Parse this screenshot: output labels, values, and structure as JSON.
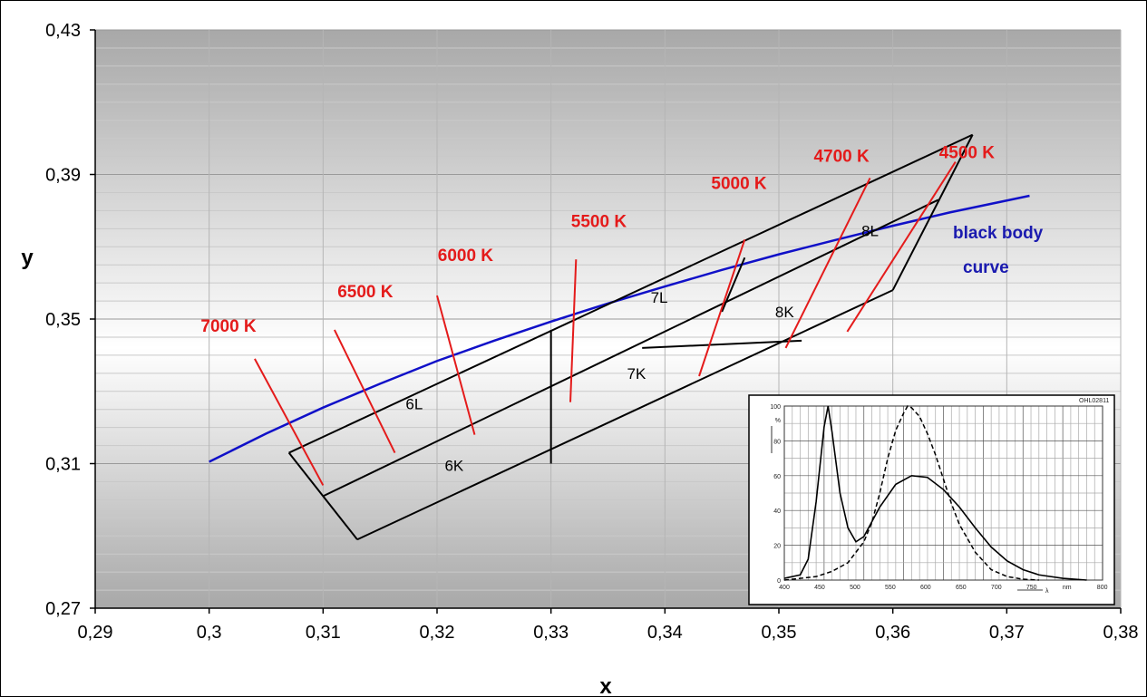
{
  "chart_data": {
    "type": "line",
    "xlabel": "x",
    "ylabel": "y",
    "xlim": [
      0.29,
      0.38
    ],
    "ylim": [
      0.27,
      0.43
    ],
    "x_ticks": [
      "0,29",
      "0,3",
      "0,31",
      "0,32",
      "0,33",
      "0,34",
      "0,35",
      "0,36",
      "0,37",
      "0,38"
    ],
    "y_ticks": [
      "0,27",
      "0,31",
      "0,35",
      "0,39",
      "0,43"
    ],
    "grid": true,
    "black_body_curve": {
      "label_line1": "black body",
      "label_line2": "curve",
      "color": "#1010c8",
      "points": [
        [
          0.3,
          0.3105
        ],
        [
          0.305,
          0.3183
        ],
        [
          0.31,
          0.3255
        ],
        [
          0.315,
          0.3321
        ],
        [
          0.32,
          0.3384
        ],
        [
          0.325,
          0.344
        ],
        [
          0.33,
          0.3493
        ],
        [
          0.335,
          0.3543
        ],
        [
          0.34,
          0.359
        ],
        [
          0.345,
          0.3636
        ],
        [
          0.35,
          0.3679
        ],
        [
          0.355,
          0.3719
        ],
        [
          0.36,
          0.3758
        ],
        [
          0.365,
          0.3795
        ],
        [
          0.372,
          0.3841
        ]
      ]
    },
    "outline_segments": [
      [
        [
          0.307,
          0.313
        ],
        [
          0.367,
          0.401
        ]
      ],
      [
        [
          0.307,
          0.313
        ],
        [
          0.313,
          0.289
        ]
      ],
      [
        [
          0.313,
          0.289
        ],
        [
          0.36,
          0.358
        ]
      ],
      [
        [
          0.36,
          0.358
        ],
        [
          0.367,
          0.401
        ]
      ],
      [
        [
          0.31,
          0.301
        ],
        [
          0.364,
          0.383
        ]
      ],
      [
        [
          0.33,
          0.347
        ],
        [
          0.33,
          0.31
        ]
      ],
      [
        [
          0.338,
          0.342
        ],
        [
          0.352,
          0.344
        ]
      ],
      [
        [
          0.347,
          0.367
        ],
        [
          0.345,
          0.352
        ]
      ]
    ],
    "cct_labels": [
      {
        "text": "7000 K",
        "x": 0.3017,
        "y": 0.3465,
        "line": [
          [
            0.304,
            0.339
          ],
          [
            0.31,
            0.304
          ]
        ]
      },
      {
        "text": "6500 K",
        "x": 0.3137,
        "y": 0.356,
        "line": [
          [
            0.311,
            0.347
          ],
          [
            0.3163,
            0.313
          ]
        ]
      },
      {
        "text": "6000 K",
        "x": 0.3225,
        "y": 0.366,
        "line": [
          [
            0.32,
            0.3565
          ],
          [
            0.3233,
            0.318
          ]
        ]
      },
      {
        "text": "5500 K",
        "x": 0.3342,
        "y": 0.3755,
        "line": [
          [
            0.3322,
            0.3665
          ],
          [
            0.3317,
            0.327
          ]
        ]
      },
      {
        "text": "5000 K",
        "x": 0.3465,
        "y": 0.386,
        "line": [
          [
            0.347,
            0.372
          ],
          [
            0.343,
            0.3342
          ]
        ]
      },
      {
        "text": "4700 K",
        "x": 0.3555,
        "y": 0.3935,
        "line": [
          [
            0.358,
            0.389
          ],
          [
            0.3506,
            0.342
          ]
        ]
      },
      {
        "text": "4500 K",
        "x": 0.3665,
        "y": 0.3945,
        "line": [
          [
            0.3655,
            0.3935
          ],
          [
            0.356,
            0.3465
          ]
        ]
      }
    ],
    "bin_labels": [
      {
        "text": "6L",
        "x": 0.318,
        "y": 0.325
      },
      {
        "text": "6K",
        "x": 0.3215,
        "y": 0.308
      },
      {
        "text": "7L",
        "x": 0.3395,
        "y": 0.3545
      },
      {
        "text": "7K",
        "x": 0.3375,
        "y": 0.3335
      },
      {
        "text": "8L",
        "x": 0.358,
        "y": 0.373
      },
      {
        "text": "8K",
        "x": 0.3505,
        "y": 0.3505
      }
    ],
    "inset": {
      "title": "OHL02811",
      "x_ticks": [
        "400",
        "450",
        "500",
        "550",
        "600",
        "650",
        "700",
        "750",
        "nm",
        "800"
      ],
      "y_ticks": [
        "0",
        "20",
        "40",
        "60",
        "80",
        "100"
      ],
      "y_unit": "%",
      "xlim": [
        400,
        800
      ],
      "ylim": [
        0,
        100
      ],
      "x_axis_symbol": "λ",
      "solid_curve": [
        [
          400,
          1
        ],
        [
          420,
          3
        ],
        [
          430,
          12
        ],
        [
          440,
          45
        ],
        [
          450,
          88
        ],
        [
          455,
          100
        ],
        [
          460,
          85
        ],
        [
          470,
          50
        ],
        [
          480,
          30
        ],
        [
          490,
          22
        ],
        [
          500,
          25
        ],
        [
          520,
          42
        ],
        [
          540,
          55
        ],
        [
          560,
          60
        ],
        [
          580,
          59
        ],
        [
          600,
          52
        ],
        [
          620,
          42
        ],
        [
          640,
          30
        ],
        [
          660,
          19
        ],
        [
          680,
          11
        ],
        [
          700,
          6
        ],
        [
          720,
          3
        ],
        [
          750,
          1
        ],
        [
          780,
          0
        ]
      ],
      "dashed_curve": [
        [
          400,
          0
        ],
        [
          440,
          2
        ],
        [
          460,
          5
        ],
        [
          480,
          10
        ],
        [
          500,
          22
        ],
        [
          510,
          33
        ],
        [
          520,
          50
        ],
        [
          530,
          70
        ],
        [
          540,
          86
        ],
        [
          550,
          96
        ],
        [
          555,
          100
        ],
        [
          560,
          99
        ],
        [
          570,
          94
        ],
        [
          580,
          84
        ],
        [
          590,
          72
        ],
        [
          600,
          58
        ],
        [
          610,
          44
        ],
        [
          620,
          32
        ],
        [
          640,
          16
        ],
        [
          660,
          6
        ],
        [
          680,
          2
        ],
        [
          700,
          0.5
        ],
        [
          720,
          0
        ]
      ]
    }
  }
}
